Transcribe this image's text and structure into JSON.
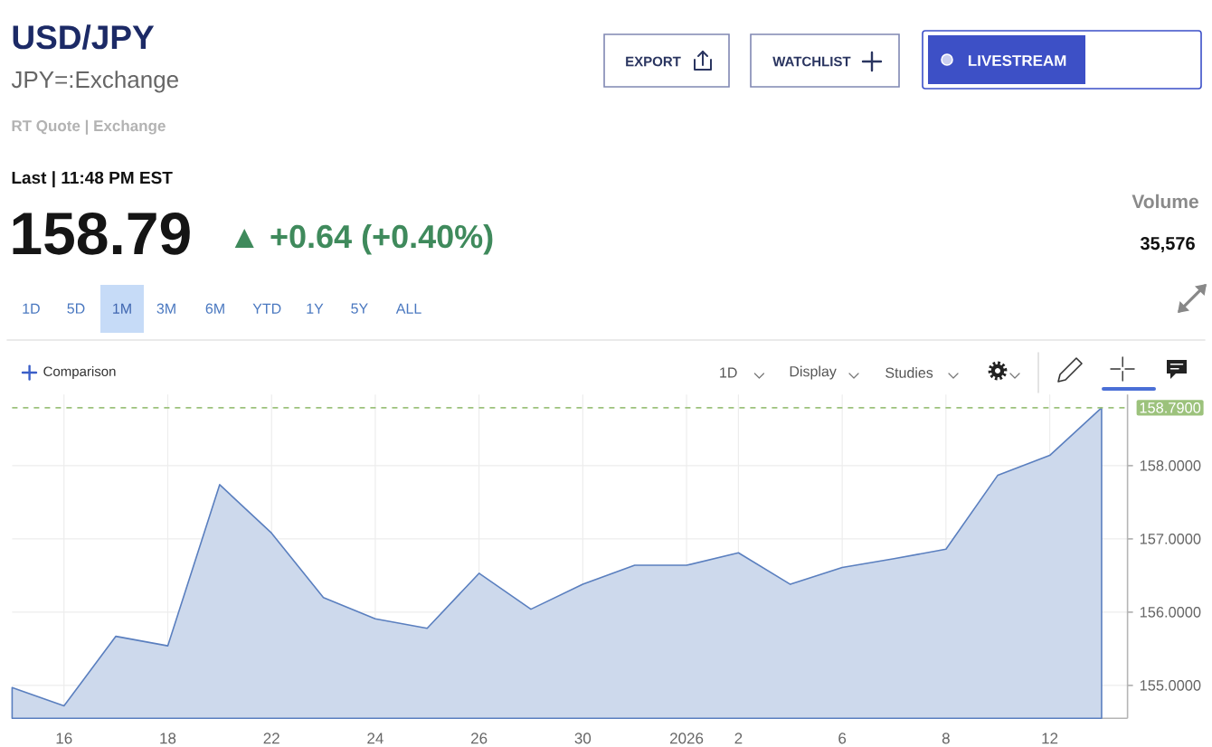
{
  "chart_data": {
    "type": "area",
    "title": "USD/JPY",
    "subtitle": "JPY=:Exchange",
    "annotations": [
      "RT Quote | Exchange",
      "Last | 11:48 PM EST",
      "158.79",
      "▲ +0.64 (+0.40%)",
      "Volume",
      "35,576",
      "EXPORT",
      "WATCHLIST",
      "LIVESTREAM",
      "1D",
      "5D",
      "1M",
      "3M",
      "6M",
      "YTD",
      "1Y",
      "5Y",
      "ALL",
      "Comparison",
      "1D",
      "Display",
      "Studies"
    ],
    "categories": [
      null,
      "16",
      null,
      "18",
      null,
      "22",
      null,
      "24",
      null,
      "26",
      null,
      "30",
      null,
      "2026",
      "2",
      null,
      "6",
      null,
      "8",
      null,
      "12",
      null
    ],
    "series": [
      {
        "color": "#5a7fbf",
        "values": [
          154.97,
          154.72,
          155.67,
          155.54,
          157.74,
          157.08,
          156.2,
          155.91,
          155.78,
          156.53,
          156.04,
          156.38,
          156.64,
          156.64,
          156.81,
          156.38,
          156.61,
          156.73,
          156.86,
          157.87,
          158.14,
          158.79
        ]
      }
    ],
    "ylim": [
      154.55,
      158.97
    ],
    "yticks": [
      {
        "value": 155,
        "label": "155.0000"
      },
      {
        "value": 156,
        "label": "156.0000"
      },
      {
        "value": 157,
        "label": "157.0000"
      },
      {
        "value": 158,
        "label": "158.0000"
      }
    ],
    "grid": true,
    "ref_lines": [
      {
        "axis": "y",
        "value": 158.79,
        "label": "158.7900",
        "color": "#9cc27c",
        "line_style": "dashed"
      }
    ]
  }
}
